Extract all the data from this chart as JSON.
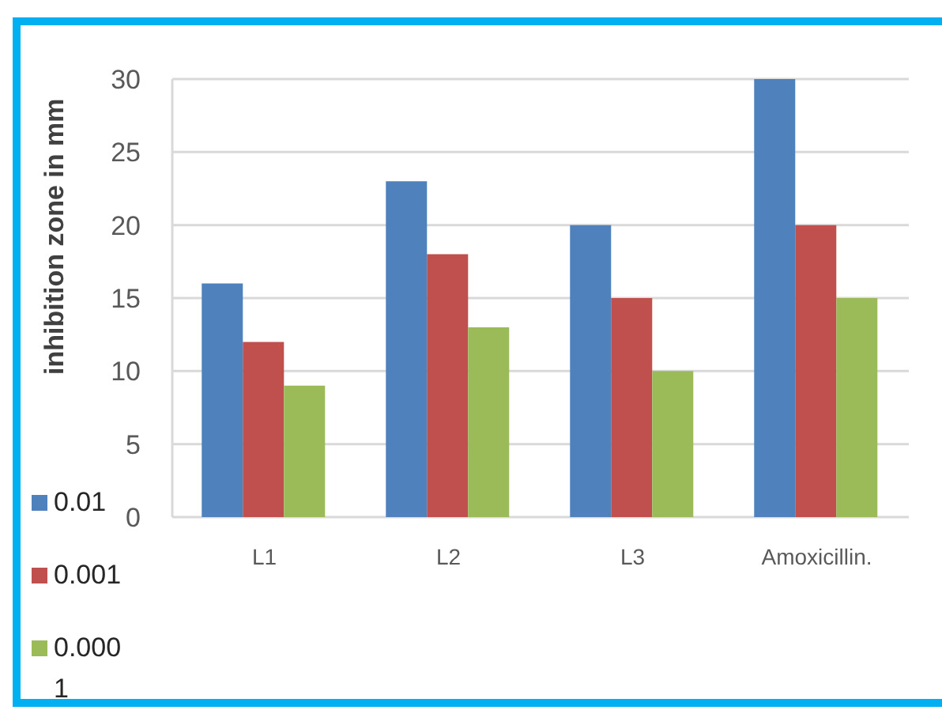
{
  "chart_data": {
    "type": "bar",
    "ylabel": "inhibition zone in mm",
    "categories": [
      "L1",
      "L2",
      "L3",
      "Amoxicillin."
    ],
    "series": [
      {
        "name": "0.01",
        "color": "#4f81bd",
        "values": [
          16,
          23,
          20,
          30
        ]
      },
      {
        "name": "0.001",
        "color": "#c0504d",
        "values": [
          12,
          18,
          15,
          20
        ]
      },
      {
        "name": "0.0001",
        "color": "#9bbb59",
        "values": [
          9,
          13,
          10,
          15
        ]
      }
    ],
    "ylim": [
      0,
      30
    ],
    "yticks": [
      0,
      5,
      10,
      15,
      20,
      25,
      30
    ],
    "grid": "y",
    "legend": "left"
  }
}
